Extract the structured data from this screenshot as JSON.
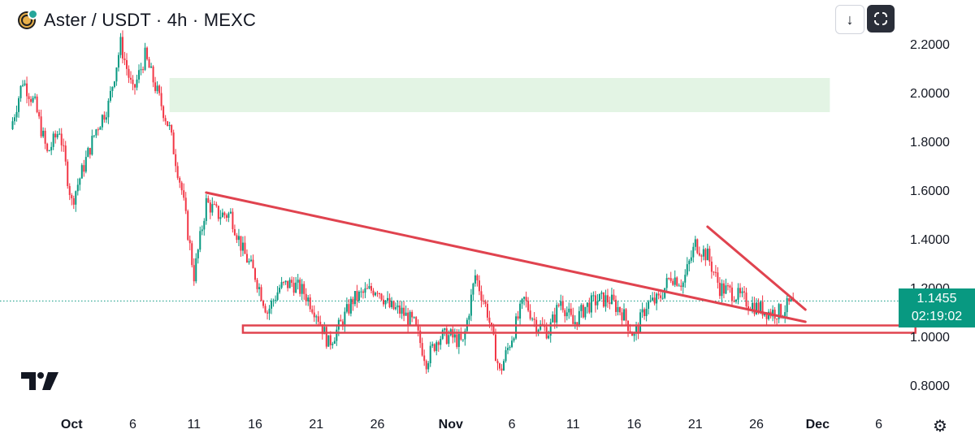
{
  "header": {
    "title": "Aster / USDT · 4h · MEXC",
    "download_icon": "arrow-down-icon",
    "fullscreen_icon": "fullscreen-icon"
  },
  "price_tag": {
    "price": "1.1455",
    "countdown": "02:19:02"
  },
  "colors": {
    "up": "#089981",
    "down": "#f23645",
    "drawing": "#e0434f",
    "zone": "#e3f4e4",
    "tag": "#089981"
  },
  "chart_data": {
    "type": "candlestick",
    "title": "Aster / USDT · 4h · MEXC",
    "ylim": [
      0.72,
      2.3
    ],
    "x_ticks": [
      "Oct",
      "6",
      "11",
      "16",
      "21",
      "26",
      "Nov",
      "6",
      "11",
      "16",
      "21",
      "26",
      "Dec",
      "6"
    ],
    "y_ticks": [
      "2.2000",
      "2.0000",
      "1.8000",
      "1.6000",
      "1.4000",
      "1.2000",
      "1.0000",
      "0.8000"
    ],
    "y_tick_values": [
      2.2,
      2.0,
      1.8,
      1.6,
      1.4,
      1.2,
      1.0,
      0.8
    ],
    "last_price": 1.1455,
    "close_series": [
      {
        "date": "Sep 26",
        "close": 1.85
      },
      {
        "date": "Sep 27",
        "close": 2.05
      },
      {
        "date": "Sep 28",
        "close": 1.95
      },
      {
        "date": "Sep 29",
        "close": 1.75
      },
      {
        "date": "Sep 30",
        "close": 1.85
      },
      {
        "date": "Oct 1",
        "close": 1.55
      },
      {
        "date": "Oct 2",
        "close": 1.7
      },
      {
        "date": "Oct 3",
        "close": 1.85
      },
      {
        "date": "Oct 4",
        "close": 1.95
      },
      {
        "date": "Oct 5",
        "close": 2.2
      },
      {
        "date": "Oct 6",
        "close": 2.0
      },
      {
        "date": "Oct 7",
        "close": 2.15
      },
      {
        "date": "Oct 8",
        "close": 2.0
      },
      {
        "date": "Oct 9",
        "close": 1.85
      },
      {
        "date": "Oct 10",
        "close": 1.6
      },
      {
        "date": "Oct 11",
        "close": 1.25
      },
      {
        "date": "Oct 12",
        "close": 1.55
      },
      {
        "date": "Oct 13",
        "close": 1.5
      },
      {
        "date": "Oct 14",
        "close": 1.5
      },
      {
        "date": "Oct 15",
        "close": 1.35
      },
      {
        "date": "Oct 16",
        "close": 1.25
      },
      {
        "date": "Oct 17",
        "close": 1.1
      },
      {
        "date": "Oct 18",
        "close": 1.2
      },
      {
        "date": "Oct 19",
        "close": 1.22
      },
      {
        "date": "Oct 20",
        "close": 1.18
      },
      {
        "date": "Oct 21",
        "close": 1.1
      },
      {
        "date": "Oct 22",
        "close": 0.97
      },
      {
        "date": "Oct 23",
        "close": 1.05
      },
      {
        "date": "Oct 24",
        "close": 1.15
      },
      {
        "date": "Oct 25",
        "close": 1.18
      },
      {
        "date": "Oct 26",
        "close": 1.2
      },
      {
        "date": "Oct 27",
        "close": 1.12
      },
      {
        "date": "Oct 28",
        "close": 1.1
      },
      {
        "date": "Oct 29",
        "close": 1.05
      },
      {
        "date": "Oct 30",
        "close": 0.9
      },
      {
        "date": "Oct 31",
        "close": 1.0
      },
      {
        "date": "Nov 1",
        "close": 1.0
      },
      {
        "date": "Nov 2",
        "close": 0.97
      },
      {
        "date": "Nov 3",
        "close": 1.25
      },
      {
        "date": "Nov 4",
        "close": 1.1
      },
      {
        "date": "Nov 5",
        "close": 0.85
      },
      {
        "date": "Nov 6",
        "close": 1.0
      },
      {
        "date": "Nov 7",
        "close": 1.15
      },
      {
        "date": "Nov 8",
        "close": 1.05
      },
      {
        "date": "Nov 9",
        "close": 1.02
      },
      {
        "date": "Nov 10",
        "close": 1.15
      },
      {
        "date": "Nov 11",
        "close": 1.05
      },
      {
        "date": "Nov 12",
        "close": 1.12
      },
      {
        "date": "Nov 13",
        "close": 1.15
      },
      {
        "date": "Nov 14",
        "close": 1.15
      },
      {
        "date": "Nov 15",
        "close": 1.1
      },
      {
        "date": "Nov 16",
        "close": 1.0
      },
      {
        "date": "Nov 17",
        "close": 1.13
      },
      {
        "date": "Nov 18",
        "close": 1.15
      },
      {
        "date": "Nov 19",
        "close": 1.25
      },
      {
        "date": "Nov 20",
        "close": 1.22
      },
      {
        "date": "Nov 21",
        "close": 1.38
      },
      {
        "date": "Nov 22",
        "close": 1.33
      },
      {
        "date": "Nov 23",
        "close": 1.2
      },
      {
        "date": "Nov 24",
        "close": 1.18
      },
      {
        "date": "Nov 25",
        "close": 1.15
      },
      {
        "date": "Nov 26",
        "close": 1.12
      },
      {
        "date": "Nov 27",
        "close": 1.1
      },
      {
        "date": "Nov 28",
        "close": 1.1
      },
      {
        "date": "Nov 29",
        "close": 1.1455
      }
    ],
    "drawings": {
      "resistance_zone": {
        "y_range": [
          1.92,
          2.06
        ],
        "x_range": [
          "Oct 9",
          "Dec 2"
        ]
      },
      "support_zone": {
        "y_range": [
          1.015,
          1.045
        ],
        "x_range": [
          "Oct 15",
          "Dec 9"
        ]
      },
      "descending_trendline": {
        "from": {
          "date": "Oct 12",
          "price": 1.59
        },
        "to": {
          "date": "Nov 30",
          "price": 1.06
        }
      },
      "short_trendline": {
        "from": {
          "date": "Nov 22",
          "price": 1.45
        },
        "to": {
          "date": "Nov 30",
          "price": 1.11
        }
      }
    }
  }
}
